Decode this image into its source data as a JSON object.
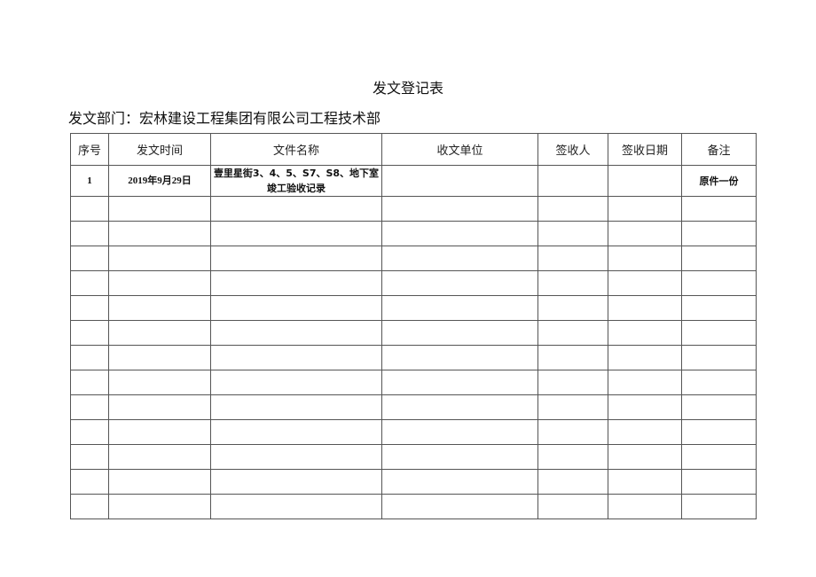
{
  "title": "发文登记表",
  "department": "发文部门：宏林建设工程集团有限公司工程技术部",
  "columns": [
    "序号",
    "发文时间",
    "文件名称",
    "收文单位",
    "签收人",
    "签收日期",
    "备注"
  ],
  "first_row": {
    "index": "1",
    "date": "2019年9月29日",
    "name": "壹里星街3、4、5、S7、S8、地下室竣工验收记录",
    "recipient": "",
    "signer": "",
    "sign_date": "",
    "remark": "原件一份"
  },
  "empty_row_count": 13,
  "rows": []
}
